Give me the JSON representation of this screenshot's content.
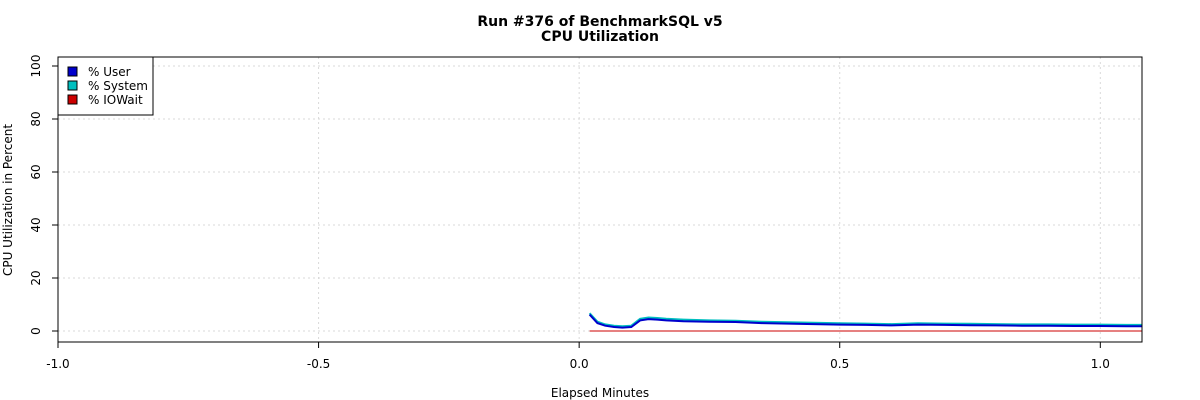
{
  "title_line1": "Run #376 of BenchmarkSQL v5",
  "title_line2": "CPU Utilization",
  "chart_data": {
    "type": "line",
    "title": "Run #376 of BenchmarkSQL v5 / CPU Utilization",
    "xlabel": "Elapsed Minutes",
    "ylabel": "CPU Utilization in Percent",
    "xlim": [
      -1.0,
      1.08
    ],
    "ylim": [
      0,
      100
    ],
    "x_ticks": [
      -1.0,
      -0.5,
      0.0,
      0.5,
      1.0
    ],
    "x_tick_labels": [
      "-1.0",
      "-0.5",
      "0.0",
      "0.5",
      "1.0"
    ],
    "y_ticks": [
      0,
      20,
      40,
      60,
      80,
      100
    ],
    "y_tick_labels": [
      "0",
      "20",
      "40",
      "60",
      "80",
      "100"
    ],
    "grid": true,
    "legend_position": "top-left",
    "x": [
      0.02,
      0.035,
      0.05,
      0.067,
      0.083,
      0.1,
      0.117,
      0.133,
      0.15,
      0.167,
      0.2,
      0.25,
      0.3,
      0.35,
      0.4,
      0.45,
      0.5,
      0.55,
      0.6,
      0.65,
      0.7,
      0.75,
      0.8,
      0.85,
      0.9,
      0.95,
      1.0,
      1.05,
      1.08
    ],
    "series": [
      {
        "name": "% User",
        "color": "#0000cc",
        "values": [
          6.2,
          3.0,
          2.0,
          1.5,
          1.3,
          1.5,
          4.0,
          4.5,
          4.3,
          4.0,
          3.7,
          3.5,
          3.4,
          3.0,
          2.8,
          2.6,
          2.4,
          2.3,
          2.1,
          2.4,
          2.3,
          2.2,
          2.1,
          2.0,
          2.0,
          1.9,
          1.9,
          1.8,
          1.8
        ]
      },
      {
        "name": "% System",
        "color": "#00bfbf",
        "values": [
          0.5,
          0.5,
          0.5,
          0.5,
          0.5,
          0.5,
          0.6,
          0.6,
          0.6,
          0.6,
          0.6,
          0.5,
          0.5,
          0.5,
          0.5,
          0.5,
          0.5,
          0.5,
          0.5,
          0.5,
          0.5,
          0.5,
          0.5,
          0.5,
          0.5,
          0.5,
          0.5,
          0.5,
          0.5
        ]
      },
      {
        "name": "% IOWait",
        "color": "#cc0000",
        "values": [
          0.0,
          0.0,
          0.0,
          0.0,
          0.0,
          0.0,
          0.0,
          0.0,
          0.0,
          0.0,
          0.0,
          0.0,
          0.0,
          0.0,
          0.0,
          0.0,
          0.0,
          0.0,
          0.0,
          0.0,
          0.0,
          0.0,
          0.0,
          0.0,
          0.0,
          0.0,
          0.0,
          0.0,
          0.0
        ]
      }
    ]
  }
}
